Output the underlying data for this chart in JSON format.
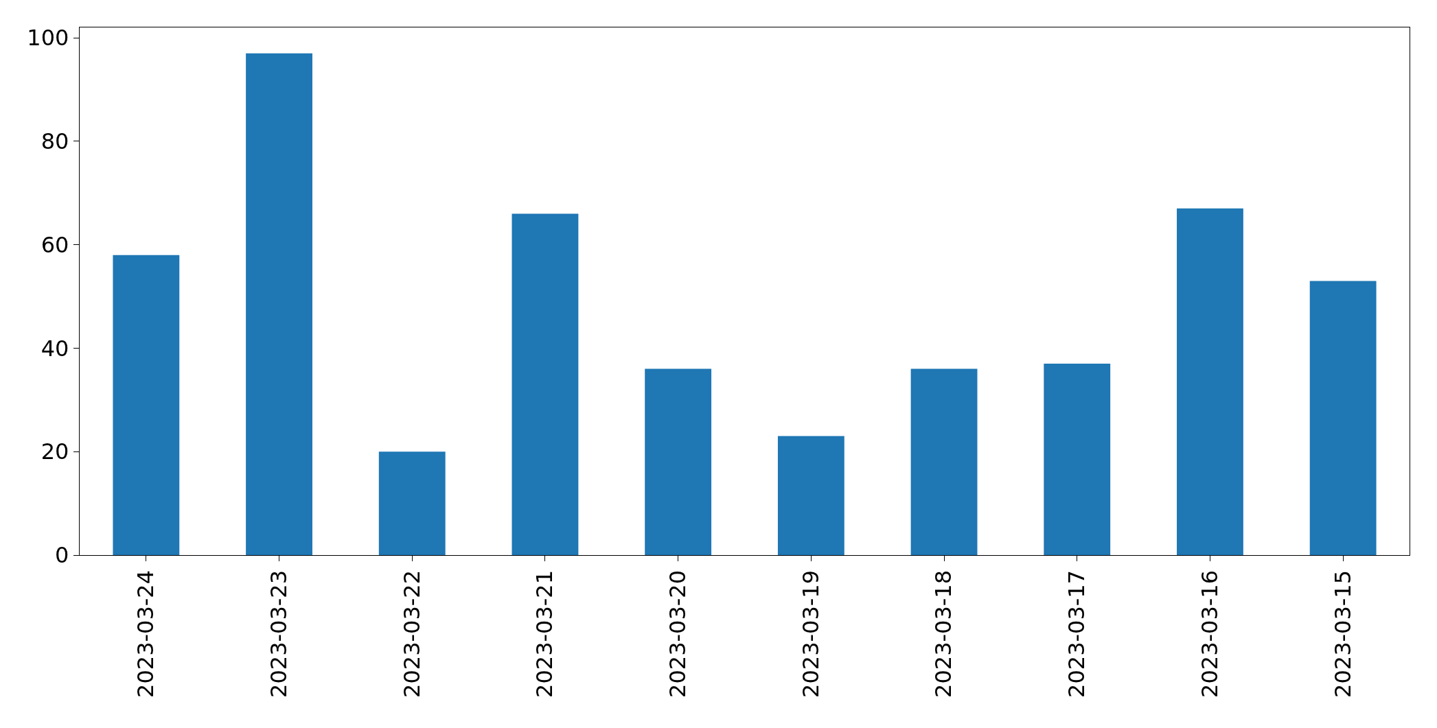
{
  "chart_data": {
    "type": "bar",
    "categories": [
      "2023-03-24",
      "2023-03-23",
      "2023-03-22",
      "2023-03-21",
      "2023-03-20",
      "2023-03-19",
      "2023-03-18",
      "2023-03-17",
      "2023-03-16",
      "2023-03-15"
    ],
    "values": [
      58,
      97,
      20,
      66,
      36,
      23,
      36,
      37,
      67,
      53
    ],
    "color": "#1f77b4",
    "ylim": [
      0,
      102
    ],
    "yticks": [
      0,
      20,
      40,
      60,
      80,
      100
    ],
    "grid": false
  }
}
